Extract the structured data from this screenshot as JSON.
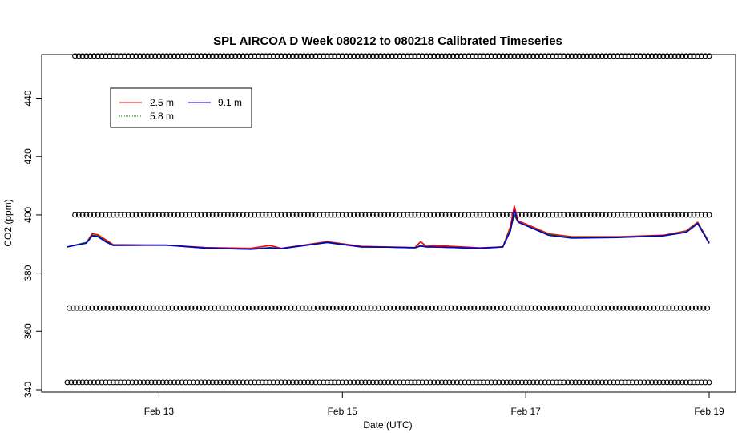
{
  "chart_data": {
    "type": "line",
    "title": "SPL AIRCOA D  Week 080212 to 080218  Calibrated Timeseries",
    "xlabel": "Date (UTC)",
    "ylabel": "CO2 (ppm)",
    "xlim": [
      "2008-02-12T00:00",
      "2008-02-19T00:00"
    ],
    "ylim": [
      340,
      455
    ],
    "x_ticks": [
      {
        "t": "2008-02-13T00:00",
        "label": "Feb 13"
      },
      {
        "t": "2008-02-15T00:00",
        "label": "Feb 15"
      },
      {
        "t": "2008-02-17T00:00",
        "label": "Feb 17"
      },
      {
        "t": "2008-02-19T00:00",
        "label": "Feb 19"
      }
    ],
    "y_ticks": [
      340,
      360,
      380,
      400,
      420,
      440
    ],
    "grid": false,
    "legend_position": "top-left",
    "legend": [
      {
        "label": "2.5 m",
        "color": "#ff0000"
      },
      {
        "label": "9.1 m",
        "color": "#0000cc"
      },
      {
        "label": "5.8 m",
        "color": "#008000"
      }
    ],
    "series": [
      {
        "name": "2.5 m",
        "color": "#ff0000",
        "points": [
          [
            "2008-02-12T00:00",
            389
          ],
          [
            "2008-02-12T05:00",
            390.5
          ],
          [
            "2008-02-12T06:30",
            393.5
          ],
          [
            "2008-02-12T08:00",
            393.2
          ],
          [
            "2008-02-12T10:00",
            391.5
          ],
          [
            "2008-02-12T12:00",
            389.8
          ],
          [
            "2008-02-13T02:00",
            389.6
          ],
          [
            "2008-02-13T12:00",
            388.8
          ],
          [
            "2008-02-14T00:00",
            388.5
          ],
          [
            "2008-02-14T05:00",
            389.5
          ],
          [
            "2008-02-14T08:00",
            388.5
          ],
          [
            "2008-02-14T20:00",
            390.8
          ],
          [
            "2008-02-15T05:00",
            389.2
          ],
          [
            "2008-02-15T12:00",
            389
          ],
          [
            "2008-02-15T19:00",
            388.8
          ],
          [
            "2008-02-15T20:30",
            390.8
          ],
          [
            "2008-02-15T22:00",
            389.2
          ],
          [
            "2008-02-16T00:00",
            389.5
          ],
          [
            "2008-02-16T12:00",
            388.7
          ],
          [
            "2008-02-16T18:00",
            389
          ],
          [
            "2008-02-16T20:00",
            396
          ],
          [
            "2008-02-16T21:00",
            403
          ],
          [
            "2008-02-16T22:00",
            398
          ],
          [
            "2008-02-17T06:00",
            393.5
          ],
          [
            "2008-02-17T12:00",
            392.5
          ],
          [
            "2008-02-18T00:00",
            392.5
          ],
          [
            "2008-02-18T12:00",
            393
          ],
          [
            "2008-02-18T18:00",
            394.5
          ],
          [
            "2008-02-18T21:00",
            397.5
          ],
          [
            "2008-02-19T00:00",
            390.5
          ]
        ]
      },
      {
        "name": "5.8 m",
        "color": "#008000",
        "points": [
          [
            "2008-02-12T00:00",
            389
          ],
          [
            "2008-02-12T05:00",
            390.5
          ],
          [
            "2008-02-12T06:30",
            393
          ],
          [
            "2008-02-12T08:00",
            392.8
          ],
          [
            "2008-02-12T10:00",
            391
          ],
          [
            "2008-02-12T12:00",
            389.6
          ],
          [
            "2008-02-13T02:00",
            389.6
          ],
          [
            "2008-02-13T12:00",
            388.6
          ],
          [
            "2008-02-14T00:00",
            388.2
          ],
          [
            "2008-02-14T05:00",
            388.8
          ],
          [
            "2008-02-14T08:00",
            388.4
          ],
          [
            "2008-02-14T20:00",
            390.6
          ],
          [
            "2008-02-15T05:00",
            389
          ],
          [
            "2008-02-15T12:00",
            388.9
          ],
          [
            "2008-02-15T19:00",
            388.7
          ],
          [
            "2008-02-15T20:30",
            389.5
          ],
          [
            "2008-02-15T22:00",
            389
          ],
          [
            "2008-02-16T00:00",
            389
          ],
          [
            "2008-02-16T12:00",
            388.5
          ],
          [
            "2008-02-16T18:00",
            389
          ],
          [
            "2008-02-16T20:00",
            395
          ],
          [
            "2008-02-16T21:00",
            400
          ],
          [
            "2008-02-16T22:00",
            397.5
          ],
          [
            "2008-02-17T06:00",
            393.2
          ],
          [
            "2008-02-17T12:00",
            392.2
          ],
          [
            "2008-02-18T00:00",
            392.3
          ],
          [
            "2008-02-18T12:00",
            392.8
          ],
          [
            "2008-02-18T18:00",
            394.2
          ],
          [
            "2008-02-18T21:00",
            397.2
          ],
          [
            "2008-02-19T00:00",
            390.3
          ]
        ]
      },
      {
        "name": "9.1 m",
        "color": "#0000cc",
        "points": [
          [
            "2008-02-12T00:00",
            389
          ],
          [
            "2008-02-12T05:00",
            390.3
          ],
          [
            "2008-02-12T06:30",
            392.8
          ],
          [
            "2008-02-12T08:00",
            392.5
          ],
          [
            "2008-02-12T10:00",
            390.8
          ],
          [
            "2008-02-12T12:00",
            389.5
          ],
          [
            "2008-02-13T02:00",
            389.6
          ],
          [
            "2008-02-13T12:00",
            388.6
          ],
          [
            "2008-02-14T00:00",
            388.2
          ],
          [
            "2008-02-14T05:00",
            388.6
          ],
          [
            "2008-02-14T08:00",
            388.4
          ],
          [
            "2008-02-14T20:00",
            390.5
          ],
          [
            "2008-02-15T05:00",
            389
          ],
          [
            "2008-02-15T12:00",
            388.9
          ],
          [
            "2008-02-15T19:00",
            388.7
          ],
          [
            "2008-02-15T20:30",
            389.3
          ],
          [
            "2008-02-15T22:00",
            389
          ],
          [
            "2008-02-16T00:00",
            389
          ],
          [
            "2008-02-16T12:00",
            388.5
          ],
          [
            "2008-02-16T18:00",
            389
          ],
          [
            "2008-02-16T20:00",
            394.5
          ],
          [
            "2008-02-16T21:00",
            401.5
          ],
          [
            "2008-02-16T22:00",
            397.5
          ],
          [
            "2008-02-17T06:00",
            393
          ],
          [
            "2008-02-17T12:00",
            392
          ],
          [
            "2008-02-18T00:00",
            392.2
          ],
          [
            "2008-02-18T12:00",
            392.8
          ],
          [
            "2008-02-18T18:00",
            394
          ],
          [
            "2008-02-18T21:00",
            397
          ],
          [
            "2008-02-19T00:00",
            390.2
          ]
        ]
      }
    ],
    "marker_rows": [
      {
        "y": 454.5,
        "start": "2008-02-12T02:00",
        "end": "2008-02-19T00:00"
      },
      {
        "y": 400,
        "start": "2008-02-12T02:00",
        "end": "2008-02-19T00:00"
      },
      {
        "y": 368,
        "start": "2008-02-12T00:30",
        "end": "2008-02-19T00:00"
      },
      {
        "y": 342.5,
        "start": "2008-02-12T00:00",
        "end": "2008-02-19T00:00"
      }
    ],
    "marker_interval_hours": 1
  }
}
